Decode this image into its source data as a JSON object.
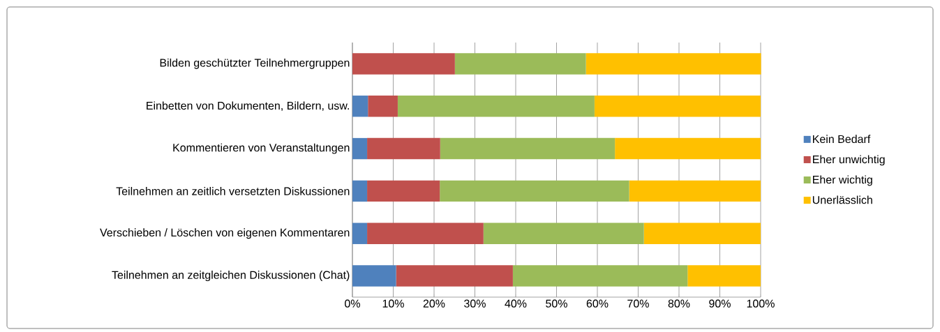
{
  "chart_data": {
    "type": "bar",
    "orientation": "horizontal",
    "stacked": true,
    "categories": [
      "Bilden geschützter Teilnehmergruppen",
      "Einbetten von Dokumenten, Bildern, usw.",
      "Kommentieren von Veranstaltungen",
      "Teilnehmen an zeitlich versetzten Diskussionen",
      "Verschieben / Löschen von eigenen Kommentaren",
      "Teilnehmen an zeitgleichen Diskussionen (Chat)"
    ],
    "series": [
      {
        "name": "Kein Bedarf",
        "color": "#4f81bd",
        "values": [
          0,
          3.8,
          3.6,
          3.6,
          3.6,
          10.7
        ]
      },
      {
        "name": "Eher unwichtig",
        "color": "#c0504d",
        "values": [
          25.1,
          7.3,
          17.9,
          17.8,
          28.5,
          28.6
        ]
      },
      {
        "name": "Eher wichtig",
        "color": "#9bbb59",
        "values": [
          32.1,
          48.2,
          42.8,
          46.4,
          39.3,
          42.8
        ]
      },
      {
        "name": "Unerlässlich",
        "color": "#ffc000",
        "values": [
          42.9,
          40.7,
          35.7,
          32.2,
          28.6,
          17.9
        ]
      }
    ],
    "xlim": [
      0,
      100
    ],
    "xticks": [
      {
        "value": 0,
        "label": "0%"
      },
      {
        "value": 10,
        "label": "10%"
      },
      {
        "value": 20,
        "label": "20%"
      },
      {
        "value": 30,
        "label": "30%"
      },
      {
        "value": 40,
        "label": "40%"
      },
      {
        "value": 50,
        "label": "50%"
      },
      {
        "value": 60,
        "label": "60%"
      },
      {
        "value": 70,
        "label": "70%"
      },
      {
        "value": 80,
        "label": "80%"
      },
      {
        "value": 90,
        "label": "90%"
      },
      {
        "value": 100,
        "label": "100%"
      }
    ],
    "grid": "x",
    "legend": "right"
  }
}
